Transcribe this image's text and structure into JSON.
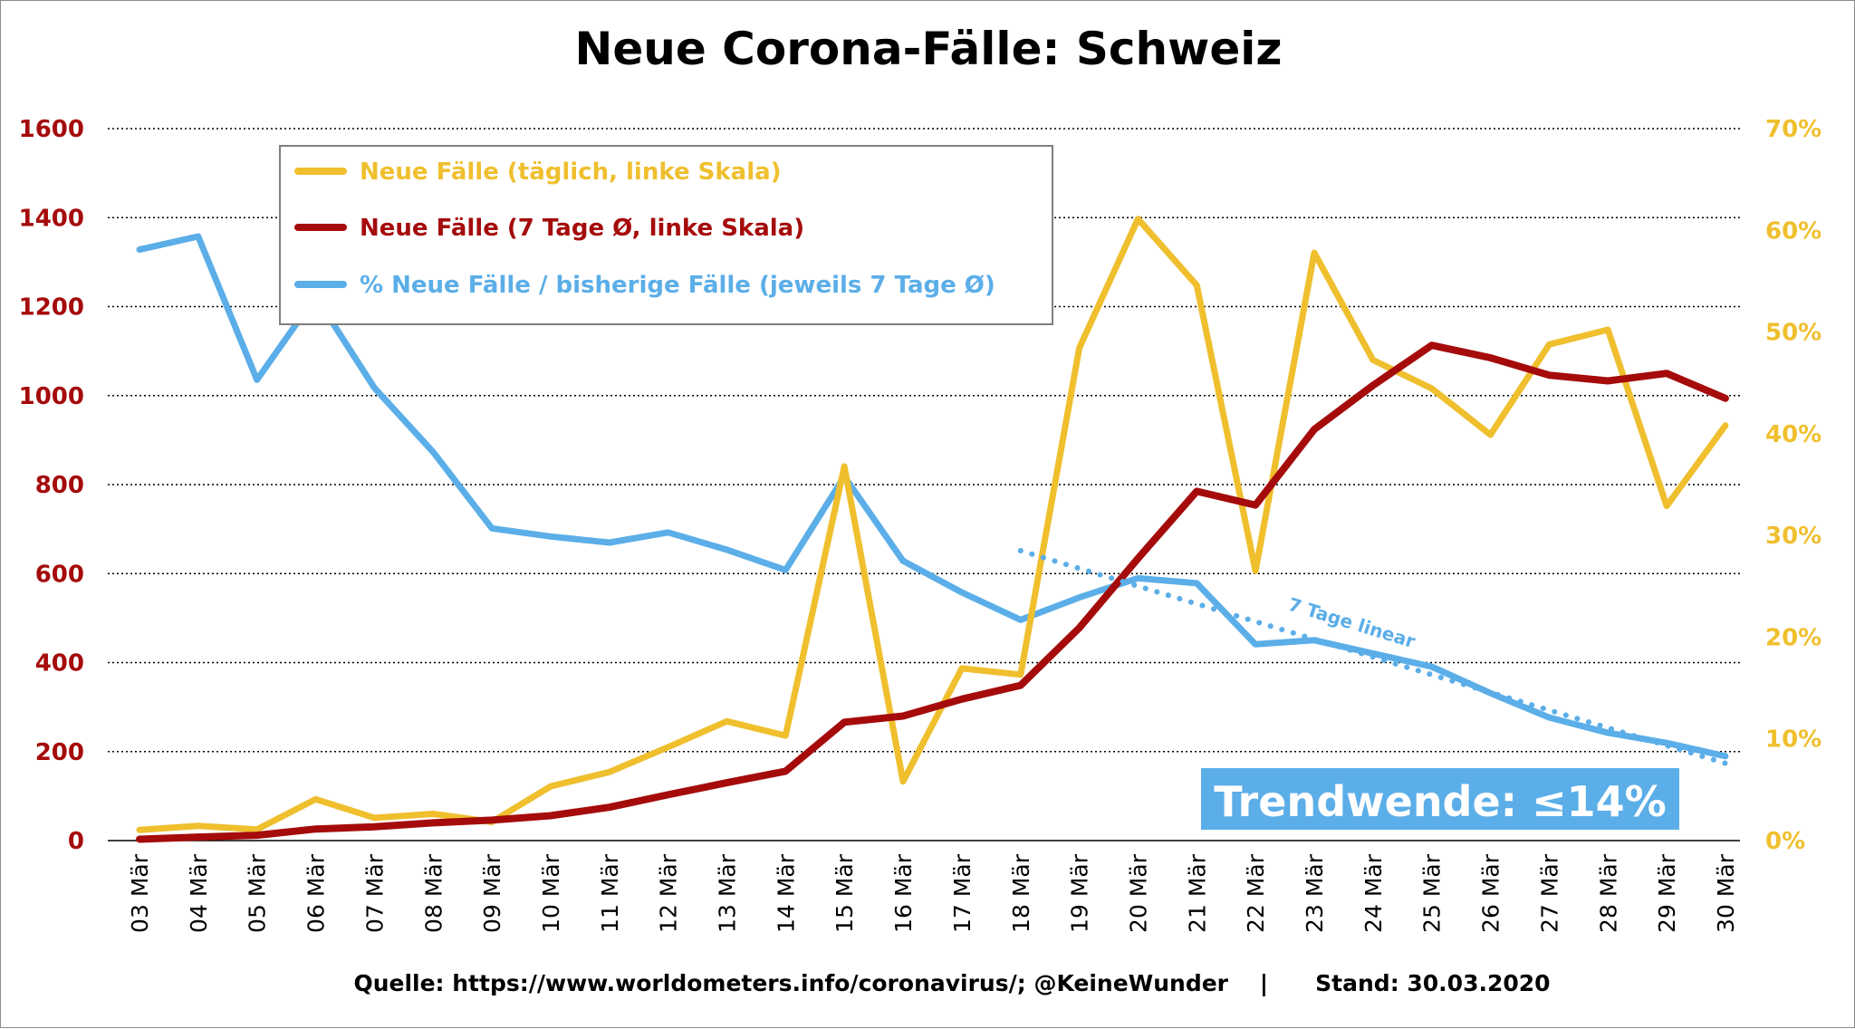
{
  "chart_data": {
    "type": "line",
    "title": "Neue Corona-Fälle: Schweiz",
    "categories": [
      "03 Mär",
      "04 Mär",
      "05 Mär",
      "06 Mär",
      "07 Mär",
      "08 Mär",
      "09 Mär",
      "10 Mär",
      "11 Mär",
      "12 Mär",
      "13 Mär",
      "14 Mär",
      "15 Mär",
      "16 Mär",
      "17 Mär",
      "18 Mär",
      "19 Mär",
      "20 Mär",
      "21 Mär",
      "22 Mär",
      "23 Mär",
      "24 Mär",
      "25 Mär",
      "26 Mär",
      "27 Mär",
      "28 Mär",
      "29 Mär",
      "30 Mär"
    ],
    "y_left": {
      "ticks": [
        "0",
        "200",
        "400",
        "600",
        "800",
        "1000",
        "1200",
        "1400",
        "1600"
      ],
      "range": [
        0,
        1600
      ]
    },
    "y_right": {
      "ticks": [
        "0%",
        "10%",
        "20%",
        "30%",
        "40%",
        "50%",
        "60%",
        "70%"
      ],
      "range": [
        0,
        70
      ]
    },
    "grid": true,
    "legend_position": "top-left",
    "series": [
      {
        "name": "Neue Fälle (täglich, linke Skala)",
        "axis": "left",
        "color": "#efbf2e",
        "values": [
          24,
          33,
          25,
          93,
          51,
          60,
          42,
          122,
          154,
          210,
          268,
          236,
          841,
          133,
          387,
          373,
          1107,
          1397,
          1248,
          606,
          1321,
          1080,
          1016,
          912,
          1115,
          1148,
          752,
          933
        ]
      },
      {
        "name": "Neue Fälle (7 Tage Ø, linke Skala)",
        "axis": "left",
        "color": "#a50b0b",
        "values": [
          3,
          8,
          12,
          26,
          31,
          40,
          46,
          56,
          75,
          103,
          130,
          156,
          266,
          280,
          318,
          349,
          478,
          634,
          785,
          754,
          924,
          1023,
          1113,
          1085,
          1046,
          1033,
          1050,
          994
        ]
      },
      {
        "name": "% Neue Fälle / bisherige Fälle (jeweils 7 Tage Ø)",
        "axis": "right",
        "color": "#5baee8",
        "values": [
          58.1,
          59.4,
          45.3,
          53.5,
          44.5,
          38.2,
          30.7,
          29.9,
          29.3,
          30.3,
          28.6,
          26.6,
          35.8,
          27.5,
          24.4,
          21.7,
          23.9,
          25.8,
          25.3,
          19.3,
          19.7,
          18.4,
          17.1,
          14.5,
          12.1,
          10.6,
          9.6,
          8.3
        ]
      },
      {
        "axis": "right",
        "color": "#5baee8",
        "dotted": true,
        "x_start": "18 Mär",
        "x_end": "30 Mär",
        "values_start_end": [
          28.5,
          7.6
        ]
      }
    ],
    "annotations": [
      "7 Tage linear",
      "Trendwende: ≤14%"
    ]
  },
  "source_line": "Quelle: https://www.worldometers.info/coronavirus/; @KeineWunder    |      Stand: 30.03.2020",
  "colors": {
    "daily": "#efbf2e",
    "avg": "#a50b0b",
    "pct": "#5baee8",
    "grid": "#000000",
    "badge": "#5baee8"
  }
}
